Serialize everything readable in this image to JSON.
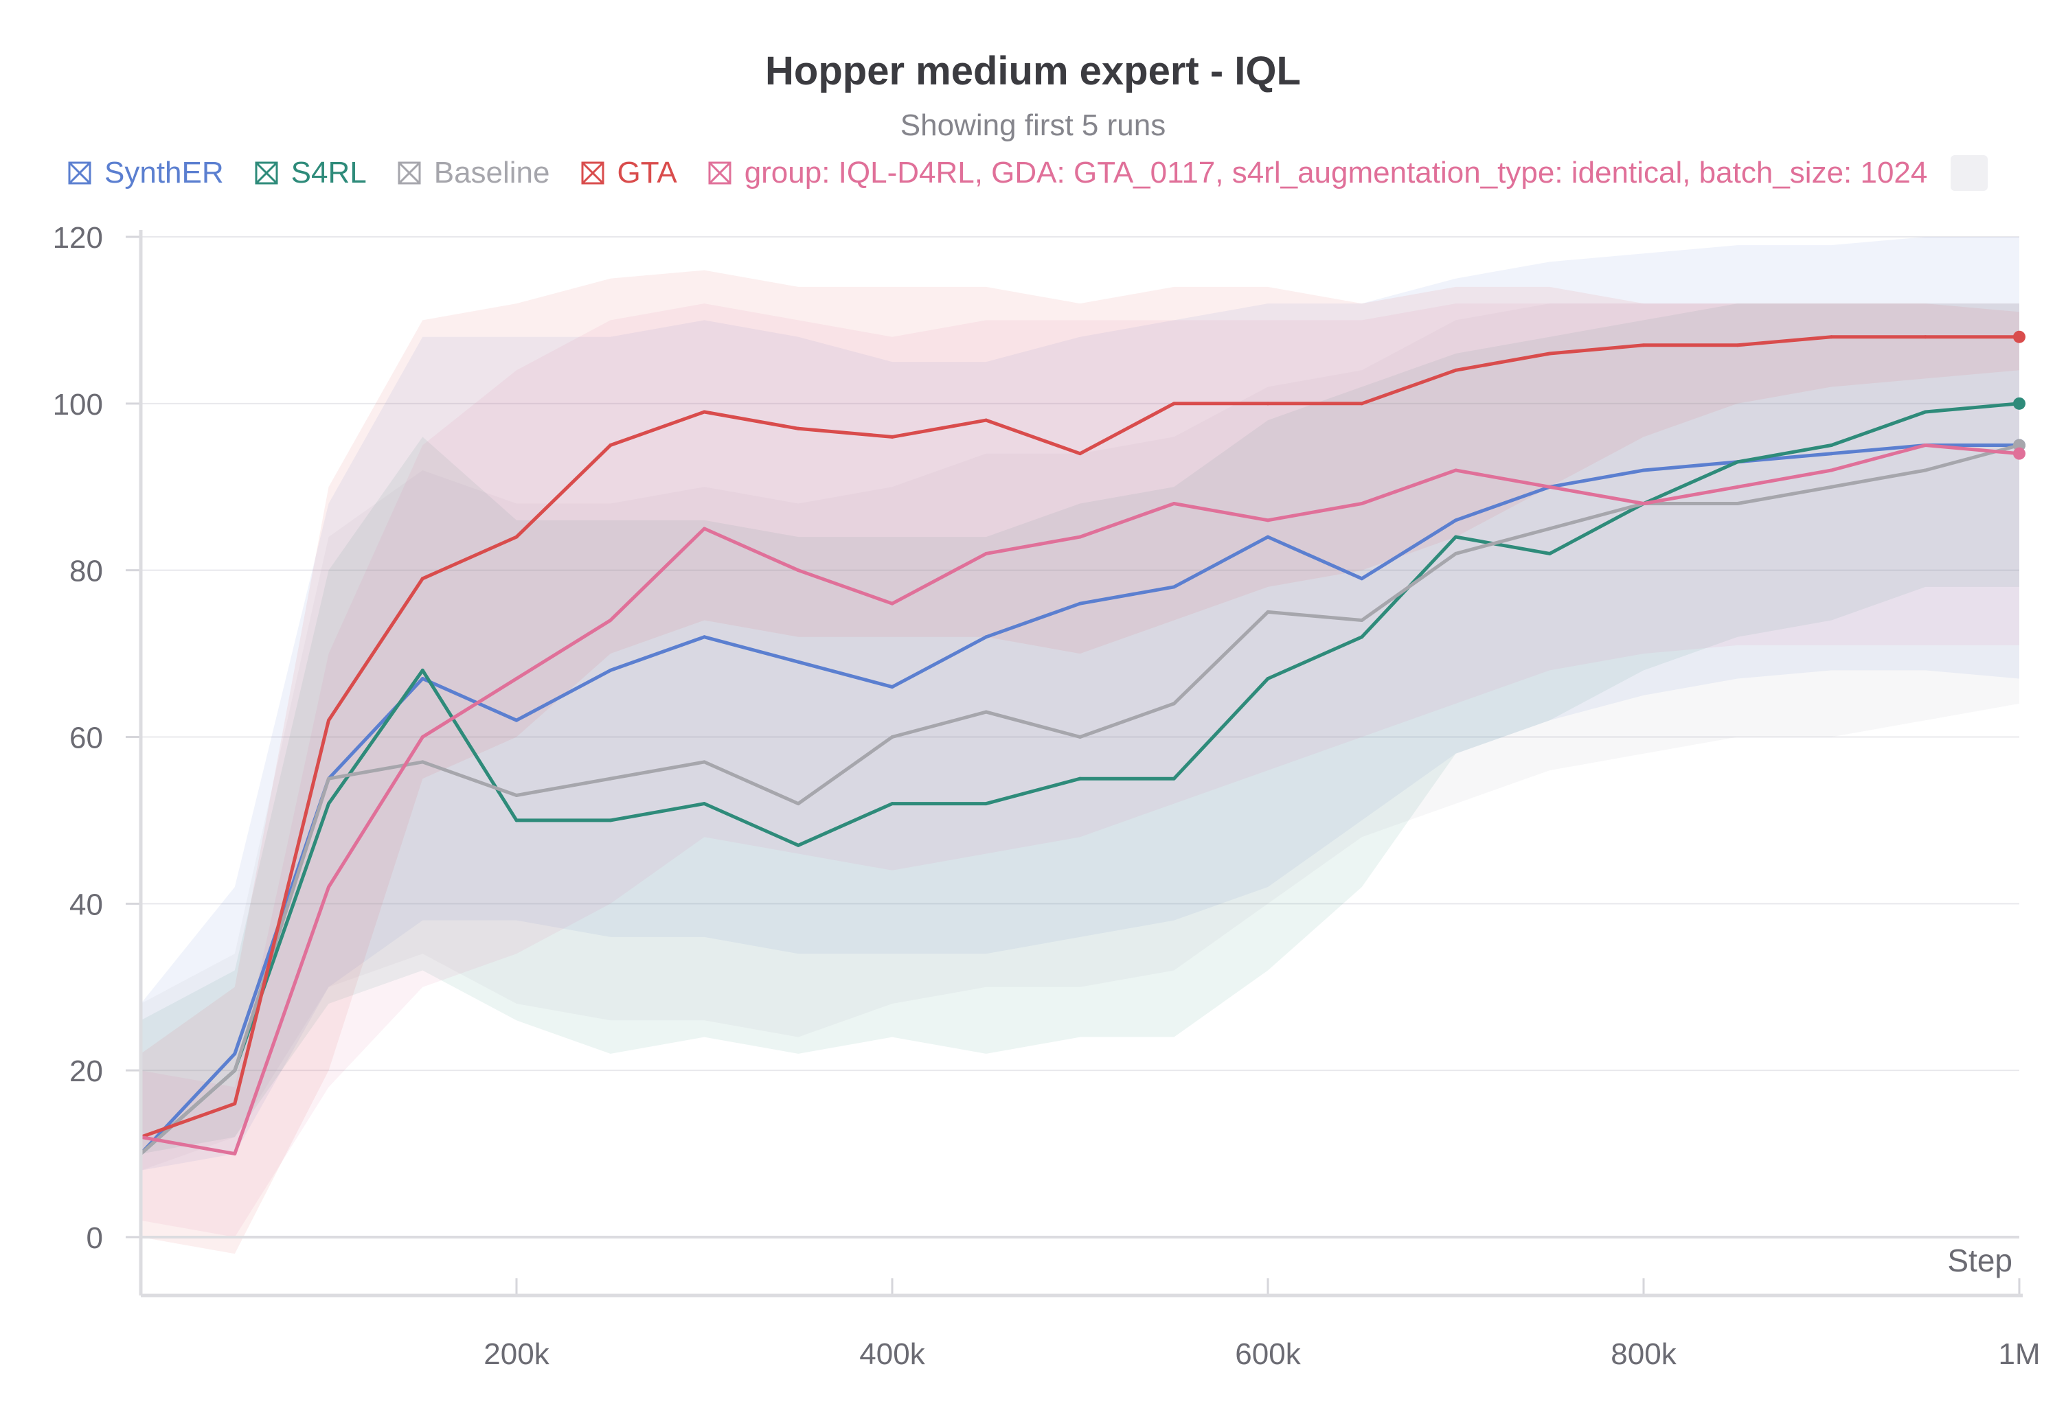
{
  "chart_data": {
    "type": "line",
    "title": "Hopper medium expert - IQL",
    "subtitle": "Showing first 5 runs",
    "xlabel": "Step",
    "ylabel": "",
    "xlim": [
      0,
      1000000
    ],
    "ylim": [
      0,
      120
    ],
    "x_ticks": [
      200000,
      400000,
      600000,
      800000,
      1000000
    ],
    "x_tick_labels": [
      "200k",
      "400k",
      "600k",
      "800k",
      "1M"
    ],
    "y_ticks": [
      0,
      20,
      40,
      60,
      80,
      100,
      120
    ],
    "y_tick_labels": [
      "0",
      "20",
      "40",
      "60",
      "80",
      "100",
      "120"
    ],
    "grid": true,
    "legend_position": "top-left",
    "x": [
      0,
      50000,
      100000,
      150000,
      200000,
      250000,
      300000,
      350000,
      400000,
      450000,
      500000,
      550000,
      600000,
      650000,
      700000,
      750000,
      800000,
      850000,
      900000,
      950000,
      1000000
    ],
    "series": [
      {
        "name": "SynthER",
        "color": "#5b7fd0",
        "values": [
          10,
          22,
          55,
          67,
          62,
          68,
          72,
          69,
          66,
          72,
          76,
          78,
          84,
          79,
          86,
          90,
          92,
          93,
          94,
          95,
          95
        ],
        "band_upper": [
          28,
          42,
          88,
          108,
          108,
          108,
          110,
          108,
          105,
          105,
          108,
          110,
          112,
          112,
          115,
          117,
          118,
          119,
          119,
          120,
          120
        ],
        "band_lower": [
          8,
          10,
          30,
          38,
          38,
          36,
          36,
          34,
          34,
          34,
          36,
          38,
          42,
          50,
          58,
          62,
          65,
          67,
          68,
          68,
          67
        ]
      },
      {
        "name": "S4RL",
        "color": "#2e8b7a",
        "values": [
          10,
          20,
          52,
          68,
          50,
          50,
          52,
          47,
          52,
          52,
          55,
          55,
          67,
          72,
          84,
          82,
          88,
          93,
          95,
          99,
          100
        ],
        "band_upper": [
          26,
          32,
          80,
          96,
          86,
          86,
          86,
          84,
          84,
          84,
          88,
          90,
          98,
          102,
          106,
          108,
          110,
          112,
          112,
          112,
          112
        ],
        "band_lower": [
          10,
          12,
          28,
          32,
          26,
          22,
          24,
          22,
          24,
          22,
          24,
          24,
          32,
          42,
          58,
          62,
          68,
          72,
          74,
          78,
          78
        ]
      },
      {
        "name": "Baseline",
        "color": "#a6a6ac",
        "values": [
          10,
          20,
          55,
          57,
          53,
          55,
          57,
          52,
          60,
          63,
          60,
          64,
          75,
          74,
          82,
          85,
          88,
          88,
          90,
          92,
          95
        ],
        "band_upper": [
          28,
          34,
          84,
          92,
          88,
          88,
          90,
          88,
          90,
          94,
          94,
          96,
          102,
          104,
          110,
          112,
          112,
          112,
          112,
          112,
          112
        ],
        "band_lower": [
          8,
          12,
          30,
          34,
          28,
          26,
          26,
          24,
          28,
          30,
          30,
          32,
          40,
          48,
          52,
          56,
          58,
          60,
          60,
          62,
          64
        ]
      },
      {
        "name": "GTA",
        "color": "#d94c4c",
        "values": [
          12,
          16,
          62,
          79,
          84,
          95,
          99,
          97,
          96,
          98,
          94,
          100,
          100,
          100,
          104,
          106,
          107,
          107,
          108,
          108,
          108
        ],
        "band_upper": [
          22,
          30,
          90,
          110,
          112,
          115,
          116,
          114,
          114,
          114,
          112,
          114,
          114,
          112,
          114,
          114,
          112,
          112,
          112,
          112,
          111
        ],
        "band_lower": [
          0,
          -2,
          20,
          55,
          60,
          70,
          74,
          72,
          72,
          72,
          70,
          74,
          78,
          80,
          84,
          90,
          96,
          100,
          102,
          103,
          104
        ]
      },
      {
        "name": "group: IQL-D4RL, GDA: GTA_0117, s4rl_augmentation_type: identical, batch_size: 1024",
        "color": "#e07099",
        "values": [
          12,
          10,
          42,
          60,
          67,
          74,
          85,
          80,
          76,
          82,
          84,
          88,
          86,
          88,
          92,
          90,
          88,
          90,
          92,
          95,
          94
        ],
        "band_upper": [
          20,
          18,
          70,
          95,
          104,
          110,
          112,
          110,
          108,
          110,
          110,
          110,
          110,
          110,
          112,
          112,
          112,
          112,
          112,
          112,
          112
        ],
        "band_lower": [
          2,
          0,
          18,
          30,
          34,
          40,
          48,
          46,
          44,
          46,
          48,
          52,
          56,
          60,
          64,
          68,
          70,
          71,
          71,
          71,
          71
        ]
      }
    ]
  }
}
